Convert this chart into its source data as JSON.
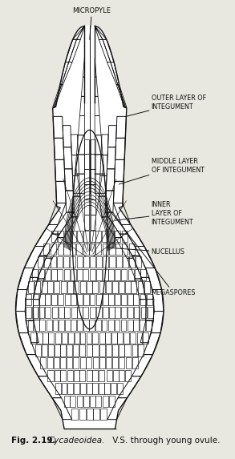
{
  "bg": "#e8e8e0",
  "lc": "#111111",
  "title_normal": "Fig. 2.19.",
  "title_italic": "Cycadeoidea.",
  "title_rest": " V.S. through young ovule.",
  "micropyle_label": "MICROPYLE",
  "outer_label": "OUTER LAYER OF\nINTEGUMENT",
  "middle_label": "MIDDLE LAYER\nOF INTEGUMENT",
  "inner_label": "INNER\nLAYER OF\nINTEGUMENT",
  "nucellus_label": "NUCELLUS",
  "megaspores_label": "MEGASPORES"
}
